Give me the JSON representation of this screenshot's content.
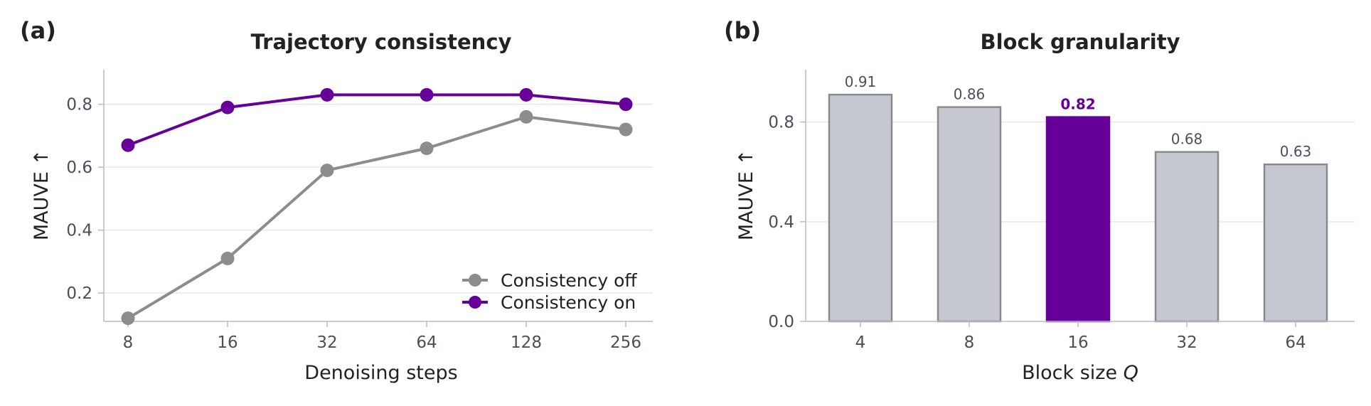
{
  "panels": [
    {
      "letter": "(a)",
      "title": "Trajectory consistency"
    },
    {
      "letter": "(b)",
      "title": "Block granularity"
    }
  ],
  "colors": {
    "purple": "#660099",
    "gray_line": "#8c8c8c",
    "bar_fill": "#c5c8d1",
    "bar_edge": "#8a8a8a",
    "grid": "#e6e8ee",
    "axis": "#b9bcc6"
  },
  "chart_data": [
    {
      "type": "line",
      "title": "Trajectory consistency",
      "xlabel": "Denoising steps",
      "ylabel": "MAUVE ↑",
      "x": [
        "8",
        "16",
        "32",
        "64",
        "128",
        "256"
      ],
      "yticks": [
        "0.2",
        "0.4",
        "0.6",
        "0.8"
      ],
      "ytick_values": [
        0.2,
        0.4,
        0.6,
        0.8
      ],
      "ylim": [
        0.11,
        0.91
      ],
      "grid": true,
      "legend_position": "bottom-right",
      "series": [
        {
          "name": "Consistency off",
          "color": "#8c8c8c",
          "values": [
            0.12,
            0.31,
            0.59,
            0.66,
            0.76,
            0.72
          ]
        },
        {
          "name": "Consistency on",
          "color": "#660099",
          "values": [
            0.67,
            0.79,
            0.83,
            0.83,
            0.83,
            0.8
          ]
        }
      ]
    },
    {
      "type": "bar",
      "title": "Block granularity",
      "xlabel": "Block size ",
      "xlabel_var": "Q",
      "ylabel": "MAUVE ↑",
      "categories": [
        "4",
        "8",
        "16",
        "32",
        "64"
      ],
      "values": [
        0.91,
        0.86,
        0.82,
        0.68,
        0.63
      ],
      "value_labels": [
        "0.91",
        "0.86",
        "0.82",
        "0.68",
        "0.63"
      ],
      "highlight_index": 2,
      "yticks": [
        "0.0",
        "0.4",
        "0.8"
      ],
      "ytick_values": [
        0.0,
        0.4,
        0.8
      ],
      "ylim": [
        0.0,
        1.0
      ],
      "grid": true
    }
  ]
}
